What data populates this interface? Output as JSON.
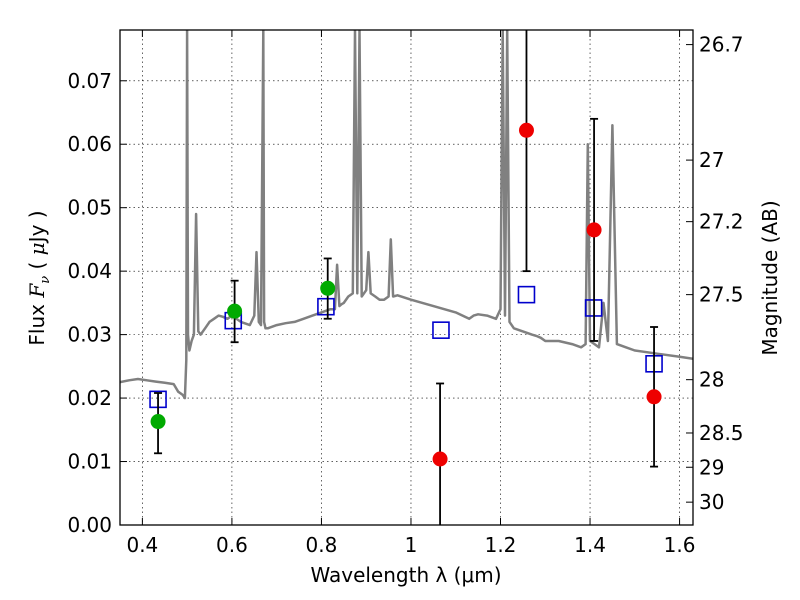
{
  "chart_data": {
    "type": "scatter",
    "xlabel": "Wavelength  λ (μm)",
    "ylabel": "Flux  F_ν  ( μJy )",
    "ylabel_parts": {
      "pre": "Flux  ",
      "var": "F",
      "sub": "ν",
      "post": "  ( ",
      "mu": "μ",
      "unit": "Jy )"
    },
    "y2label": "Magnitude (AB)",
    "xlim": [
      0.35,
      1.63
    ],
    "ylim": [
      0.0,
      0.078
    ],
    "grid": true,
    "x_ticks": [
      {
        "value": 0.4,
        "label": "0.4"
      },
      {
        "value": 0.6,
        "label": "0.6"
      },
      {
        "value": 0.8,
        "label": "0.8"
      },
      {
        "value": 1.0,
        "label": "1"
      },
      {
        "value": 1.2,
        "label": "1.2"
      },
      {
        "value": 1.4,
        "label": "1.4"
      },
      {
        "value": 1.6,
        "label": "1.6"
      }
    ],
    "y_ticks": [
      {
        "value": 0.0,
        "label": "0.00"
      },
      {
        "value": 0.01,
        "label": "0.01"
      },
      {
        "value": 0.02,
        "label": "0.02"
      },
      {
        "value": 0.03,
        "label": "0.03"
      },
      {
        "value": 0.04,
        "label": "0.04"
      },
      {
        "value": 0.05,
        "label": "0.05"
      },
      {
        "value": 0.06,
        "label": "0.06"
      },
      {
        "value": 0.07,
        "label": "0.07"
      }
    ],
    "y2_ticks": [
      {
        "label": "26.7",
        "flux": 0.0757
      },
      {
        "label": "27",
        "flux": 0.0575
      },
      {
        "label": "27.2",
        "flux": 0.0478
      },
      {
        "label": "27.5",
        "flux": 0.0363
      },
      {
        "label": "28",
        "flux": 0.0229
      },
      {
        "label": "28.5",
        "flux": 0.0145
      },
      {
        "label": "29",
        "flux": 0.0091
      },
      {
        "label": "30",
        "flux": 0.0036
      }
    ],
    "series": [
      {
        "marker": "line",
        "color": "#808080",
        "x": [
          0.35,
          0.37,
          0.39,
          0.41,
          0.43,
          0.45,
          0.47,
          0.48,
          0.49,
          0.495,
          0.498,
          0.5,
          0.502,
          0.505,
          0.51,
          0.515,
          0.52,
          0.525,
          0.53,
          0.54,
          0.55,
          0.56,
          0.57,
          0.58,
          0.59,
          0.6,
          0.62,
          0.64,
          0.65,
          0.655,
          0.66,
          0.665,
          0.67,
          0.672,
          0.675,
          0.68,
          0.7,
          0.72,
          0.74,
          0.76,
          0.78,
          0.8,
          0.82,
          0.83,
          0.835,
          0.84,
          0.845,
          0.85,
          0.86,
          0.87,
          0.875,
          0.88,
          0.885,
          0.89,
          0.9,
          0.905,
          0.91,
          0.92,
          0.93,
          0.94,
          0.95,
          0.955,
          0.96,
          0.97,
          1.0,
          1.05,
          1.1,
          1.13,
          1.14,
          1.15,
          1.17,
          1.19,
          1.2,
          1.205,
          1.21,
          1.215,
          1.22,
          1.23,
          1.25,
          1.27,
          1.28,
          1.29,
          1.3,
          1.33,
          1.36,
          1.38,
          1.39,
          1.395,
          1.4,
          1.41,
          1.42,
          1.43,
          1.44,
          1.45,
          1.46,
          1.48,
          1.5,
          1.55,
          1.6,
          1.63
        ],
        "y": [
          0.0225,
          0.0228,
          0.023,
          0.0228,
          0.0226,
          0.0224,
          0.0222,
          0.021,
          0.0205,
          0.02,
          0.026,
          0.078,
          0.03,
          0.0275,
          0.029,
          0.03,
          0.049,
          0.0305,
          0.03,
          0.031,
          0.032,
          0.0325,
          0.033,
          0.0328,
          0.0325,
          0.033,
          0.032,
          0.0315,
          0.033,
          0.043,
          0.032,
          0.0315,
          0.078,
          0.032,
          0.031,
          0.031,
          0.0315,
          0.0318,
          0.032,
          0.0325,
          0.033,
          0.0335,
          0.034,
          0.034,
          0.041,
          0.0345,
          0.0348,
          0.035,
          0.036,
          0.0365,
          0.078,
          0.0365,
          0.078,
          0.036,
          0.037,
          0.043,
          0.0365,
          0.036,
          0.0355,
          0.0355,
          0.036,
          0.045,
          0.036,
          0.0362,
          0.0355,
          0.0345,
          0.0335,
          0.0325,
          0.033,
          0.0332,
          0.033,
          0.0325,
          0.034,
          0.078,
          0.033,
          0.078,
          0.032,
          0.031,
          0.0305,
          0.03,
          0.0298,
          0.0295,
          0.029,
          0.029,
          0.0285,
          0.028,
          0.0285,
          0.06,
          0.029,
          0.0285,
          0.028,
          0.035,
          0.029,
          0.063,
          0.0285,
          0.028,
          0.0275,
          0.027,
          0.0265,
          0.0262
        ]
      },
      {
        "marker": "square",
        "color": "#0000cc",
        "x": [
          0.435,
          0.603,
          0.81,
          1.067,
          1.258,
          1.408,
          1.543
        ],
        "y": [
          0.0198,
          0.0322,
          0.0344,
          0.0307,
          0.0363,
          0.0342,
          0.0254
        ]
      },
      {
        "marker": "circle",
        "color": "#00aa00",
        "x": [
          0.435,
          0.606,
          0.814
        ],
        "y": [
          0.0163,
          0.0337,
          0.0373
        ],
        "err_low": [
          0.0113,
          0.0288,
          0.0325
        ],
        "err_high": [
          0.0208,
          0.0385,
          0.042
        ]
      },
      {
        "marker": "circle",
        "color": "#ee0000",
        "x": [
          1.065,
          1.258,
          1.409,
          1.543
        ],
        "y": [
          0.0104,
          0.0622,
          0.0465,
          0.0202
        ],
        "err_low": [
          0.0,
          0.04,
          0.029,
          0.0092
        ],
        "err_high": [
          0.0223,
          0.078,
          0.064,
          0.0312
        ]
      }
    ]
  }
}
